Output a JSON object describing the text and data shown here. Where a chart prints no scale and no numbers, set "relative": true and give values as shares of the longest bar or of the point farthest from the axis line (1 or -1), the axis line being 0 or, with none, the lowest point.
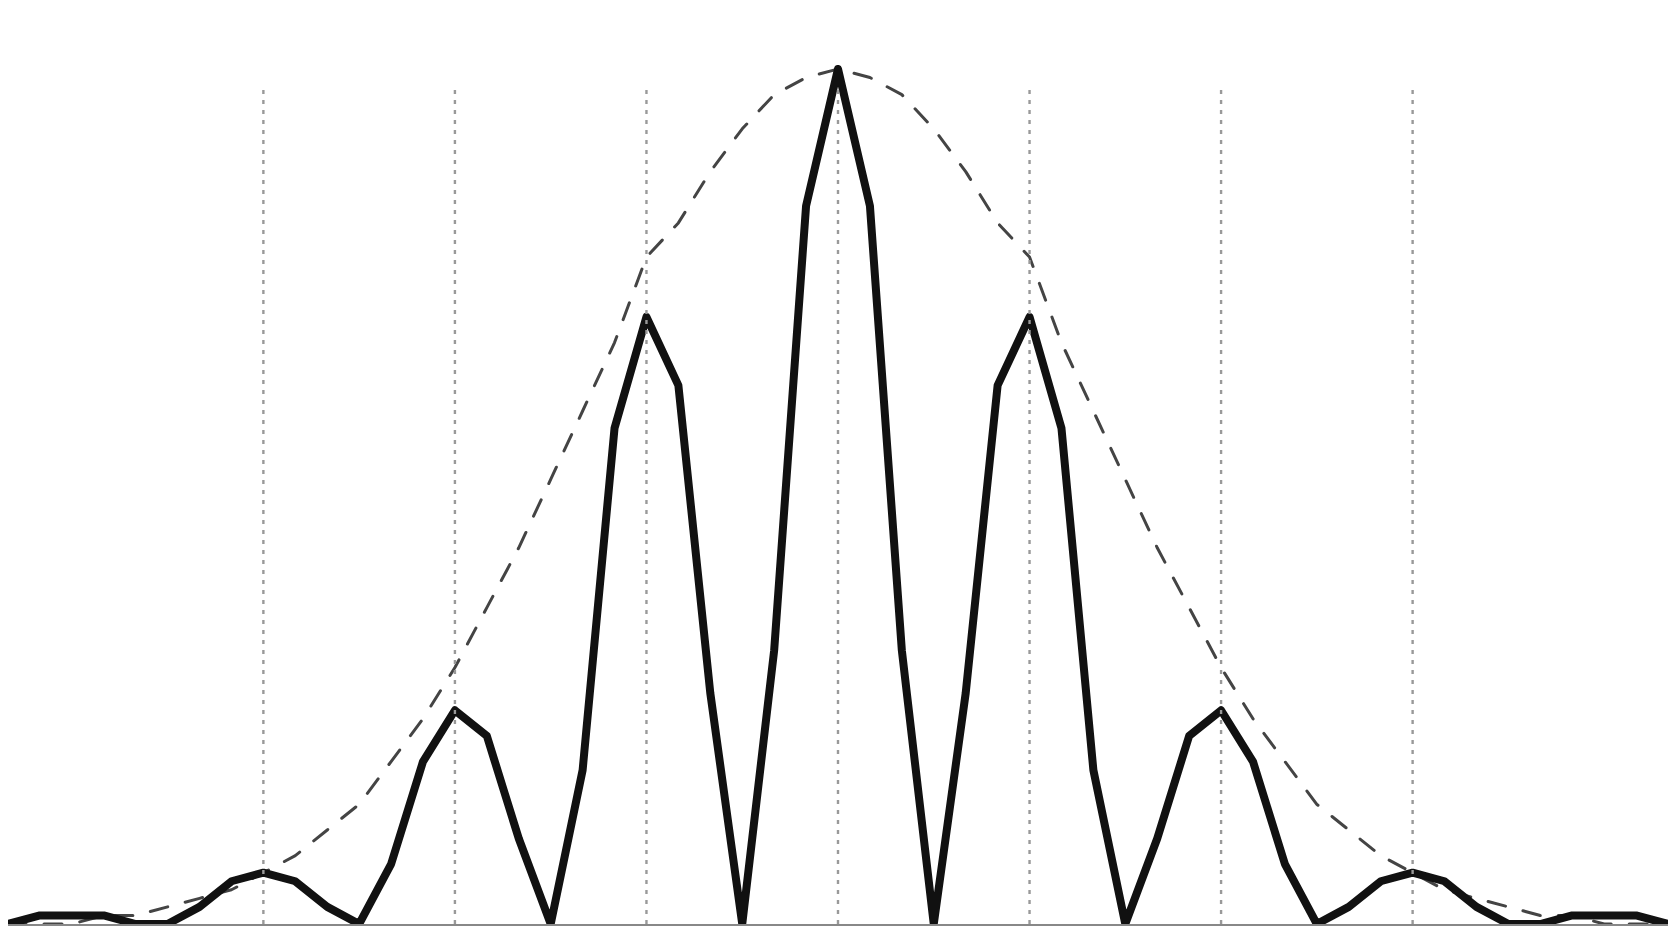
{
  "chart_data": {
    "type": "line",
    "relative": true,
    "grid": "x",
    "categories": [
      null,
      null,
      null,
      null,
      null,
      null,
      null,
      null,
      null,
      null,
      null,
      null,
      null,
      null,
      null,
      null,
      null,
      null,
      null,
      null,
      null,
      null,
      null,
      null,
      null,
      null,
      null,
      null,
      null,
      null,
      null,
      null,
      null,
      null,
      null,
      null,
      null,
      null,
      null,
      null,
      null,
      null,
      null,
      null,
      null,
      null,
      null,
      null,
      null,
      null,
      null,
      null,
      null
    ],
    "series": [
      {
        "color": "#444444",
        "line_style": "dashed",
        "values": [
          0,
          0,
          0,
          0.01,
          0.01,
          0.02,
          0.03,
          0.04,
          0.06,
          0.08,
          0.11,
          0.14,
          0.19,
          0.24,
          0.3,
          0.37,
          0.44,
          0.52,
          0.6,
          0.68,
          0.78,
          0.82,
          0.88,
          0.93,
          0.97,
          0.99,
          1,
          0.99,
          0.97,
          0.93,
          0.88,
          0.82,
          0.78,
          0.68,
          0.6,
          0.52,
          0.44,
          0.37,
          0.3,
          0.24,
          0.19,
          0.14,
          0.11,
          0.08,
          0.06,
          0.04,
          0.03,
          0.02,
          0.01,
          0.01,
          0,
          0,
          0
        ]
      },
      {
        "color": "#111111",
        "line_style": "solid",
        "values": [
          0,
          0.01,
          0.01,
          0.01,
          0,
          0,
          0.02,
          0.05,
          0.06,
          0.05,
          0.02,
          0,
          0.07,
          0.19,
          0.25,
          0.22,
          0.1,
          0,
          0.18,
          0.58,
          0.71,
          0.63,
          0.27,
          0,
          0.32,
          0.84,
          1,
          0.84,
          0.32,
          0,
          0.27,
          0.63,
          0.71,
          0.58,
          0.18,
          0,
          0.1,
          0.22,
          0.25,
          0.19,
          0.07,
          0,
          0.02,
          0.05,
          0.06,
          0.05,
          0.02,
          0,
          0,
          0.01,
          0.01,
          0.01,
          0
        ]
      }
    ]
  }
}
